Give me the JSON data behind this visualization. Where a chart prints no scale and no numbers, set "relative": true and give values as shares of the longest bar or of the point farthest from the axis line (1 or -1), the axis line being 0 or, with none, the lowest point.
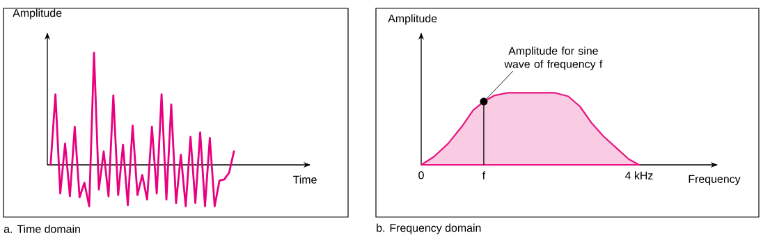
{
  "chart_data": [
    {
      "type": "line",
      "relative": true,
      "title": "a. Time domain",
      "xlabel": "Time",
      "ylabel": "Amplitude",
      "categories": [
        null,
        null,
        null,
        null,
        null,
        null,
        null,
        null,
        null,
        null,
        null,
        null,
        null,
        null,
        null,
        null,
        null,
        null,
        null,
        null,
        null,
        null,
        null,
        null,
        null,
        null,
        null,
        null,
        null,
        null,
        null,
        null,
        null,
        null,
        null,
        null,
        null,
        null,
        null
      ],
      "series": [
        {
          "color": "#e8007f",
          "values": [
            0,
            0.63,
            -0.255,
            0.19,
            -0.28,
            0.34,
            -0.29,
            -0.16,
            -0.37,
            1.0,
            -0.22,
            0.12,
            -0.28,
            0.62,
            -0.27,
            0.18,
            -0.36,
            0.35,
            -0.27,
            -0.09,
            -0.31,
            0.34,
            -0.255,
            0.63,
            -0.31,
            0.54,
            -0.34,
            0.09,
            -0.37,
            0.25,
            -0.34,
            0.29,
            -0.37,
            0.24,
            -0.37,
            -0.14,
            -0.13,
            -0.07,
            0.12
          ]
        }
      ]
    },
    {
      "type": "area",
      "relative": true,
      "title": "b. Frequency domain",
      "xlabel": "Frequency",
      "ylabel": "Amplitude",
      "x": [
        0,
        0.234,
        0.489,
        0.745,
        0.957,
        1.149,
        1.34,
        1.596,
        2.447,
        2.7,
        2.915,
        3.128,
        3.34,
        3.596,
        3.809,
        4.0
      ],
      "series": [
        {
          "color": "#e8157f",
          "values": [
            0,
            0.113,
            0.29,
            0.53,
            0.76,
            0.877,
            0.96,
            1.0,
            1.0,
            0.95,
            0.81,
            0.58,
            0.4,
            0.226,
            0.08,
            0
          ]
        }
      ],
      "xlim": [
        0,
        5.43
      ],
      "xticks": [
        {
          "value": 0,
          "label": "0"
        },
        {
          "value": 1.149,
          "label": "f"
        },
        {
          "value": 4,
          "label": "4 kHz"
        }
      ],
      "annotations": [
        {
          "text": "Amplitude for sine wave of frequency f",
          "x": 1.149,
          "y": 0.877
        }
      ]
    }
  ]
}
